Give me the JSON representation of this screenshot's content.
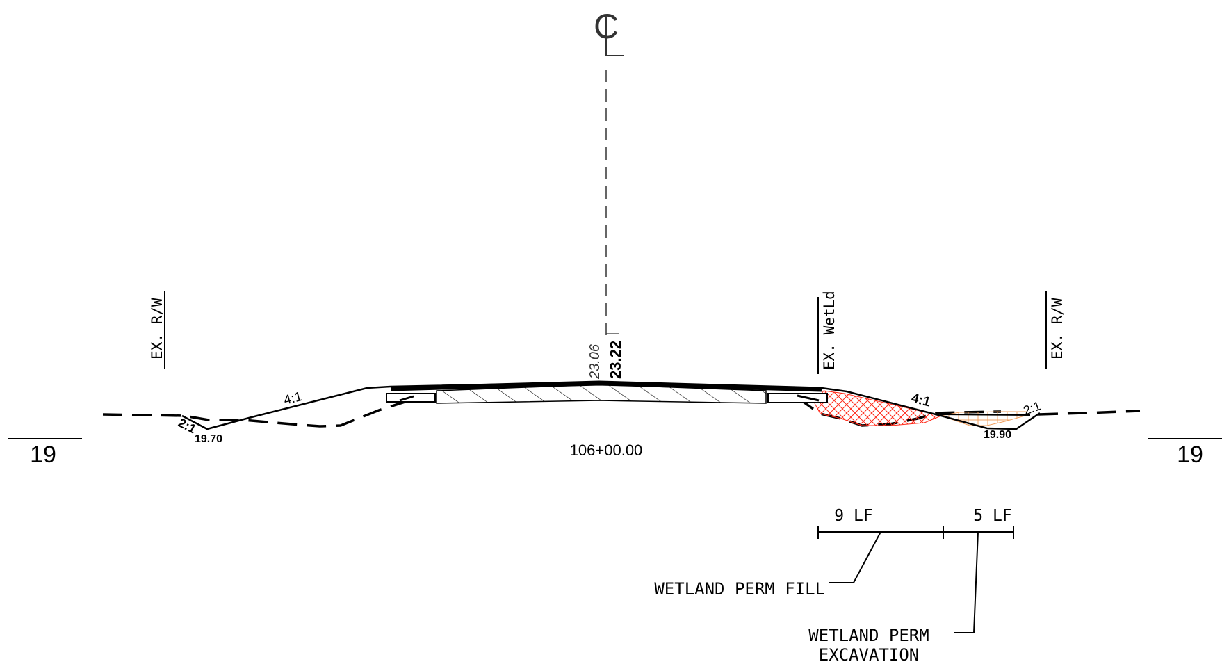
{
  "centerline": {
    "symbol_letter": "C"
  },
  "elevations": {
    "existing": "23.06",
    "proposed": "23.22"
  },
  "station": "106+00.00",
  "left": {
    "offset_mark": "19",
    "row_label": "EX. R/W",
    "slope_fill": "4:1",
    "slope_ditch": "2:1",
    "ditch_elev": "19.70"
  },
  "right": {
    "offset_mark": "19",
    "row_label": "EX. R/W",
    "wetland_label": "EX. WetLd",
    "slope_fill": "4:1",
    "slope_ditch": "2:1",
    "ditch_elev": "19.90"
  },
  "dimensions": {
    "fill_length": "9 LF",
    "excavation_length": "5 LF"
  },
  "callouts": {
    "fill": "WETLAND PERM FILL",
    "excavation_line1": "WETLAND PERM",
    "excavation_line2": "EXCAVATION"
  },
  "colors": {
    "line": "#000000",
    "fill_hatch": "#ff2a1a",
    "excavation_hatch": "#f0a060",
    "centerline": "#333333"
  }
}
